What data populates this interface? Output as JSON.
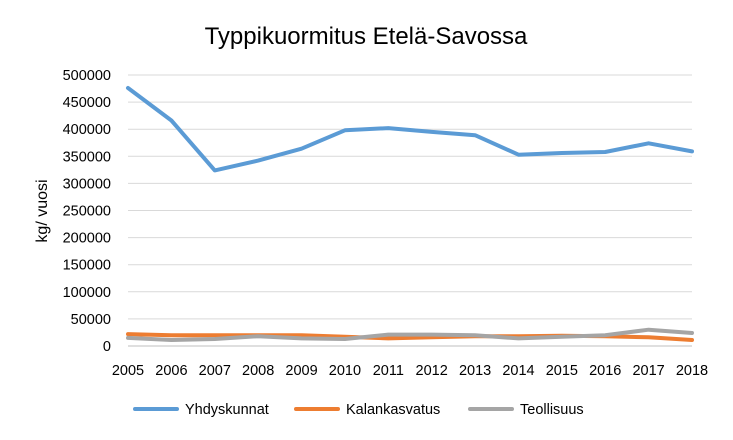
{
  "chart_data": {
    "type": "line",
    "title": "Typpikuormitus Etelä-Savossa",
    "xlabel": "",
    "ylabel": "kg/ vuosi",
    "ylim": [
      0,
      500000
    ],
    "yticks": [
      "0",
      "50000",
      "100000",
      "150000",
      "200000",
      "250000",
      "300000",
      "350000",
      "400000",
      "450000",
      "500000"
    ],
    "x": [
      "2005",
      "2006",
      "2007",
      "2008",
      "2009",
      "2010",
      "2011",
      "2012",
      "2013",
      "2014",
      "2015",
      "2016",
      "2017",
      "2018"
    ],
    "grid": true,
    "legend_position": "bottom",
    "series": [
      {
        "name": "Yhdyskunnat",
        "color": "#5B9BD5",
        "values": [
          476000,
          416000,
          324000,
          342000,
          364000,
          398000,
          402000,
          395000,
          389000,
          353000,
          356000,
          358000,
          374000,
          359000
        ]
      },
      {
        "name": "Kalankasvatus",
        "color": "#ED7D31",
        "values": [
          22000,
          20000,
          20000,
          20000,
          20000,
          17000,
          14000,
          16000,
          18000,
          18000,
          19000,
          18000,
          16000,
          11000
        ]
      },
      {
        "name": "Teollisuus",
        "color": "#A5A5A5",
        "values": [
          15000,
          11000,
          13000,
          18000,
          14000,
          13000,
          21000,
          21000,
          20000,
          14000,
          17000,
          20000,
          30000,
          24000
        ]
      }
    ]
  }
}
